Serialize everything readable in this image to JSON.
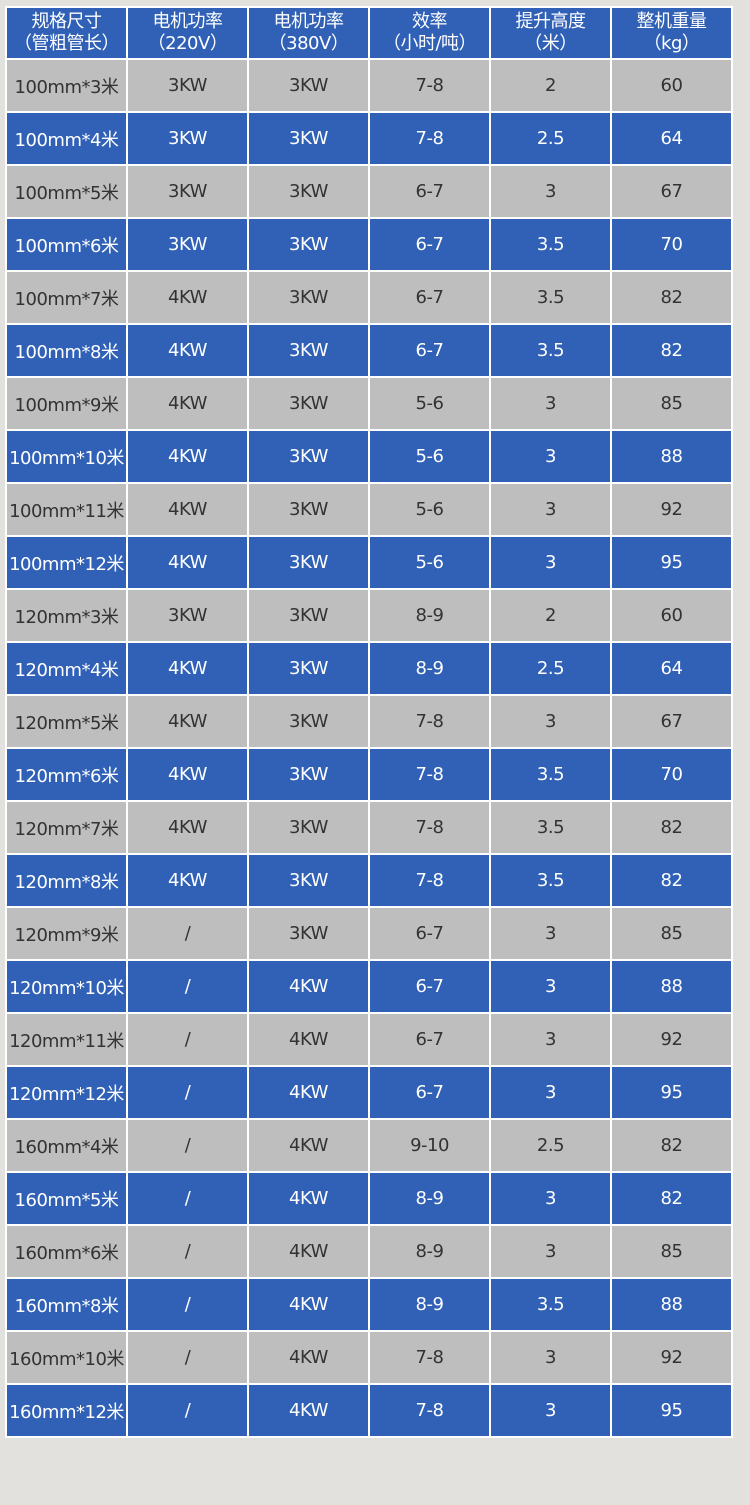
{
  "headers": [
    [
      "规格尺寸",
      "（管粗管长）"
    ],
    [
      "电机功率",
      "（220V）"
    ],
    [
      "电机功率",
      "（380V）"
    ],
    [
      "效率",
      "（小时/吨）"
    ],
    [
      "提升高度",
      "（米）"
    ],
    [
      "整机重量",
      "（kg）"
    ]
  ],
  "rows": [
    [
      "100mm*3米",
      "3KW",
      "3KW",
      "7-8",
      "2",
      "60"
    ],
    [
      "100mm*4米",
      "3KW",
      "3KW",
      "7-8",
      "2.5",
      "64"
    ],
    [
      "100mm*5米",
      "3KW",
      "3KW",
      "6-7",
      "3",
      "67"
    ],
    [
      "100mm*6米",
      "3KW",
      "3KW",
      "6-7",
      "3.5",
      "70"
    ],
    [
      "100mm*7米",
      "4KW",
      "3KW",
      "6-7",
      "3.5",
      "82"
    ],
    [
      "100mm*8米",
      "4KW",
      "3KW",
      "6-7",
      "3.5",
      "82"
    ],
    [
      "100mm*9米",
      "4KW",
      "3KW",
      "5-6",
      "3",
      "85"
    ],
    [
      "100mm*10米",
      "4KW",
      "3KW",
      "5-6",
      "3",
      "88"
    ],
    [
      "100mm*11米",
      "4KW",
      "3KW",
      "5-6",
      "3",
      "92"
    ],
    [
      "100mm*12米",
      "4KW",
      "3KW",
      "5-6",
      "3",
      "95"
    ],
    [
      "120mm*3米",
      "3KW",
      "3KW",
      "8-9",
      "2",
      "60"
    ],
    [
      "120mm*4米",
      "4KW",
      "3KW",
      "8-9",
      "2.5",
      "64"
    ],
    [
      "120mm*5米",
      "4KW",
      "3KW",
      "7-8",
      "3",
      "67"
    ],
    [
      "120mm*6米",
      "4KW",
      "3KW",
      "7-8",
      "3.5",
      "70"
    ],
    [
      "120mm*7米",
      "4KW",
      "3KW",
      "7-8",
      "3.5",
      "82"
    ],
    [
      "120mm*8米",
      "4KW",
      "3KW",
      "7-8",
      "3.5",
      "82"
    ],
    [
      "120mm*9米",
      "/",
      "3KW",
      "6-7",
      "3",
      "85"
    ],
    [
      "120mm*10米",
      "/",
      "4KW",
      "6-7",
      "3",
      "88"
    ],
    [
      "120mm*11米",
      "/",
      "4KW",
      "6-7",
      "3",
      "92"
    ],
    [
      "120mm*12米",
      "/",
      "4KW",
      "6-7",
      "3",
      "95"
    ],
    [
      "160mm*4米",
      "/",
      "4KW",
      "9-10",
      "2.5",
      "82"
    ],
    [
      "160mm*5米",
      "/",
      "4KW",
      "8-9",
      "3",
      "82"
    ],
    [
      "160mm*6米",
      "/",
      "4KW",
      "8-9",
      "3",
      "85"
    ],
    [
      "160mm*8米",
      "/",
      "4KW",
      "8-9",
      "3.5",
      "88"
    ],
    [
      "160mm*10米",
      "/",
      "4KW",
      "7-8",
      "3",
      "92"
    ],
    [
      "160mm*12米",
      "/",
      "4KW",
      "7-8",
      "3",
      "95"
    ]
  ],
  "colors": {
    "header_bg": "#3061b6",
    "odd_row_bg": "#bebebe",
    "even_row_bg": "#3061b6",
    "page_bg": "#e3e1dd"
  }
}
